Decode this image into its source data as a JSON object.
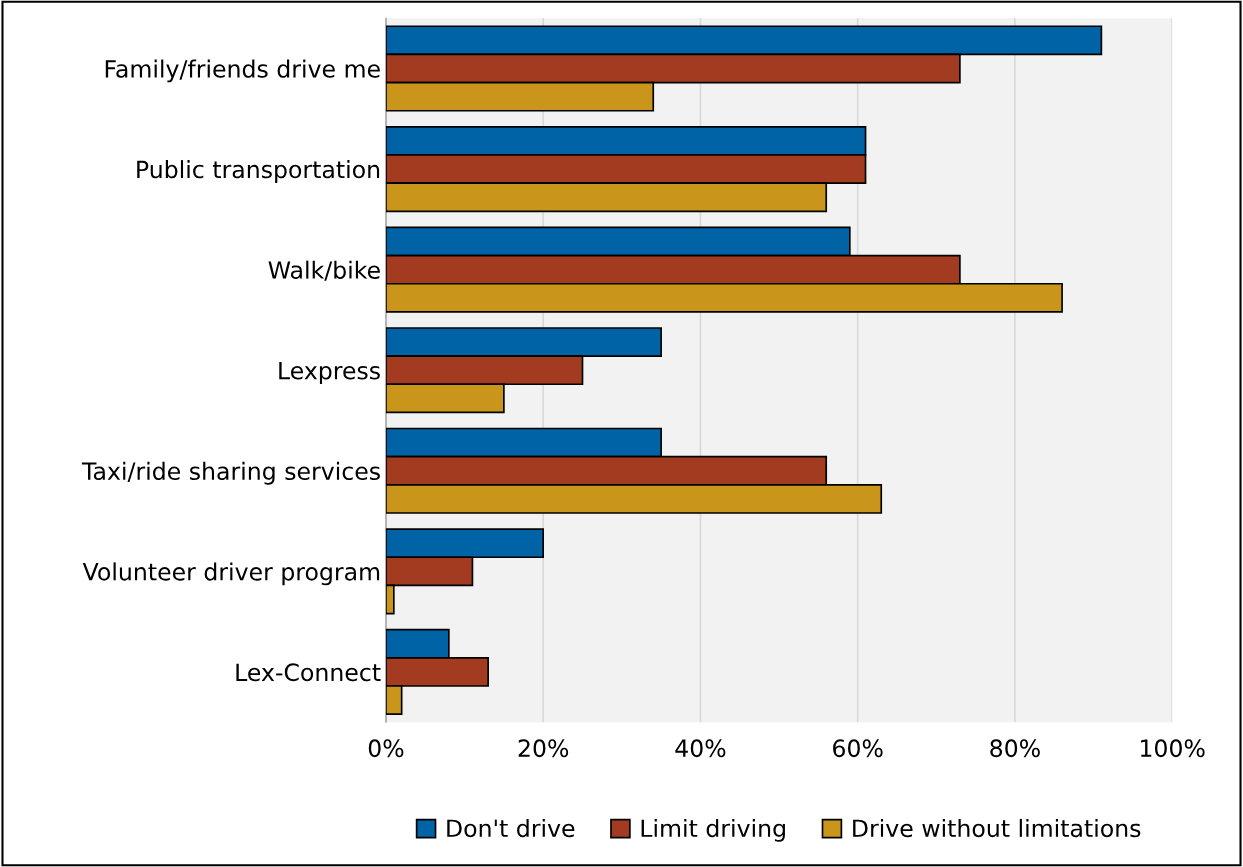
{
  "chart_data": {
    "type": "bar",
    "orientation": "horizontal",
    "categories": [
      "Family/friends drive me",
      "Public transportation",
      "Walk/bike",
      "Lexpress",
      "Taxi/ride sharing services",
      "Volunteer driver program",
      "Lex-Connect"
    ],
    "series": [
      {
        "name": "Don't drive",
        "color": "#0063a6",
        "values": [
          91,
          61,
          59,
          35,
          35,
          20,
          8
        ]
      },
      {
        "name": "Limit driving",
        "color": "#a23b20",
        "values": [
          73,
          61,
          73,
          25,
          56,
          11,
          13
        ]
      },
      {
        "name": "Drive without limitations",
        "color": "#c9951a",
        "values": [
          34,
          56,
          86,
          15,
          63,
          1,
          2
        ]
      }
    ],
    "xlim": [
      0,
      100
    ],
    "xticks": [
      {
        "value": 0,
        "label": "0%"
      },
      {
        "value": 20,
        "label": "20%"
      },
      {
        "value": 40,
        "label": "40%"
      },
      {
        "value": 60,
        "label": "60%"
      },
      {
        "value": 80,
        "label": "80%"
      },
      {
        "value": 100,
        "label": "100%"
      }
    ],
    "grid": "x",
    "legend": "bottom"
  }
}
